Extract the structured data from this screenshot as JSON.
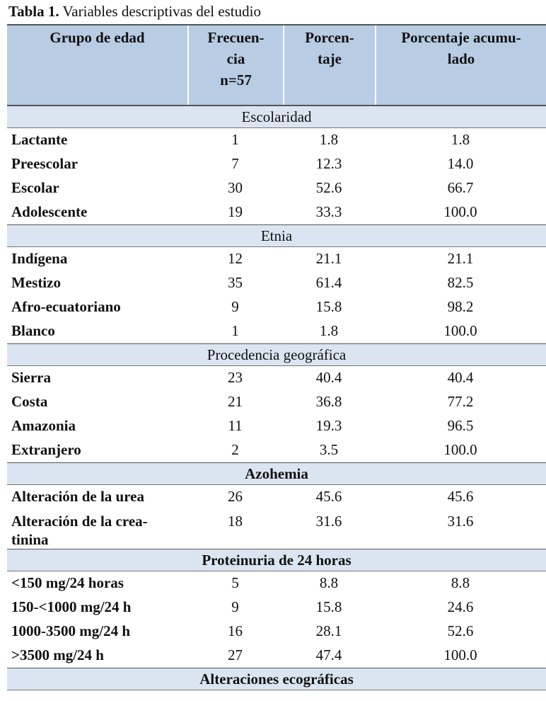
{
  "title": {
    "label": "Tabla 1.",
    "text": "Variables descriptivas del estudio"
  },
  "header": [
    [
      "Grupo de edad"
    ],
    [
      "Frecuen-",
      "cia",
      "n=57"
    ],
    [
      "Porcen-",
      "taje"
    ],
    [
      "Porcentaje acumu-",
      "lado"
    ]
  ],
  "sections": [
    {
      "title": "Escolaridad",
      "bold": false,
      "rows": [
        [
          [
            "Lactante"
          ],
          "1",
          "1.8",
          "1.8"
        ],
        [
          [
            "Preescolar"
          ],
          "7",
          "12.3",
          "14.0"
        ],
        [
          [
            "Escolar"
          ],
          "30",
          "52.6",
          "66.7"
        ],
        [
          [
            "Adolescente"
          ],
          "19",
          "33.3",
          "100.0"
        ]
      ]
    },
    {
      "title": "Etnia",
      "bold": false,
      "rows": [
        [
          [
            "Indígena"
          ],
          "12",
          "21.1",
          "21.1"
        ],
        [
          [
            "Mestizo"
          ],
          "35",
          "61.4",
          "82.5"
        ],
        [
          [
            "Afro-ecuatoriano"
          ],
          "9",
          "15.8",
          "98.2"
        ],
        [
          [
            "Blanco"
          ],
          "1",
          "1.8",
          "100.0"
        ]
      ]
    },
    {
      "title": "Procedencia geográfica",
      "bold": false,
      "rows": [
        [
          [
            "Sierra"
          ],
          "23",
          "40.4",
          "40.4"
        ],
        [
          [
            "Costa"
          ],
          "21",
          "36.8",
          "77.2"
        ],
        [
          [
            "Amazonia"
          ],
          "11",
          "19.3",
          "96.5"
        ],
        [
          [
            "Extranjero"
          ],
          "2",
          "3.5",
          "100.0"
        ]
      ]
    },
    {
      "title": "Azohemia",
      "bold": true,
      "rows": [
        [
          [
            "Alteración de la urea"
          ],
          "26",
          "45.6",
          "45.6"
        ],
        [
          [
            "Alteración de la crea-",
            "tinina"
          ],
          "18",
          "31.6",
          "31.6"
        ]
      ]
    },
    {
      "title": "Proteinuria de 24 horas",
      "bold": true,
      "rows": [
        [
          [
            "<150 mg/24 horas"
          ],
          "5",
          "8.8",
          "8.8"
        ],
        [
          [
            "150-<1000 mg/24 h"
          ],
          "9",
          "15.8",
          "24.6"
        ],
        [
          [
            "1000-3500 mg/24 h"
          ],
          "16",
          "28.1",
          "52.6"
        ],
        [
          [
            ">3500 mg/24 h"
          ],
          "27",
          "47.4",
          "100.0"
        ]
      ]
    },
    {
      "title": "Alteraciones ecográficas",
      "bold": true,
      "rows": []
    }
  ]
}
